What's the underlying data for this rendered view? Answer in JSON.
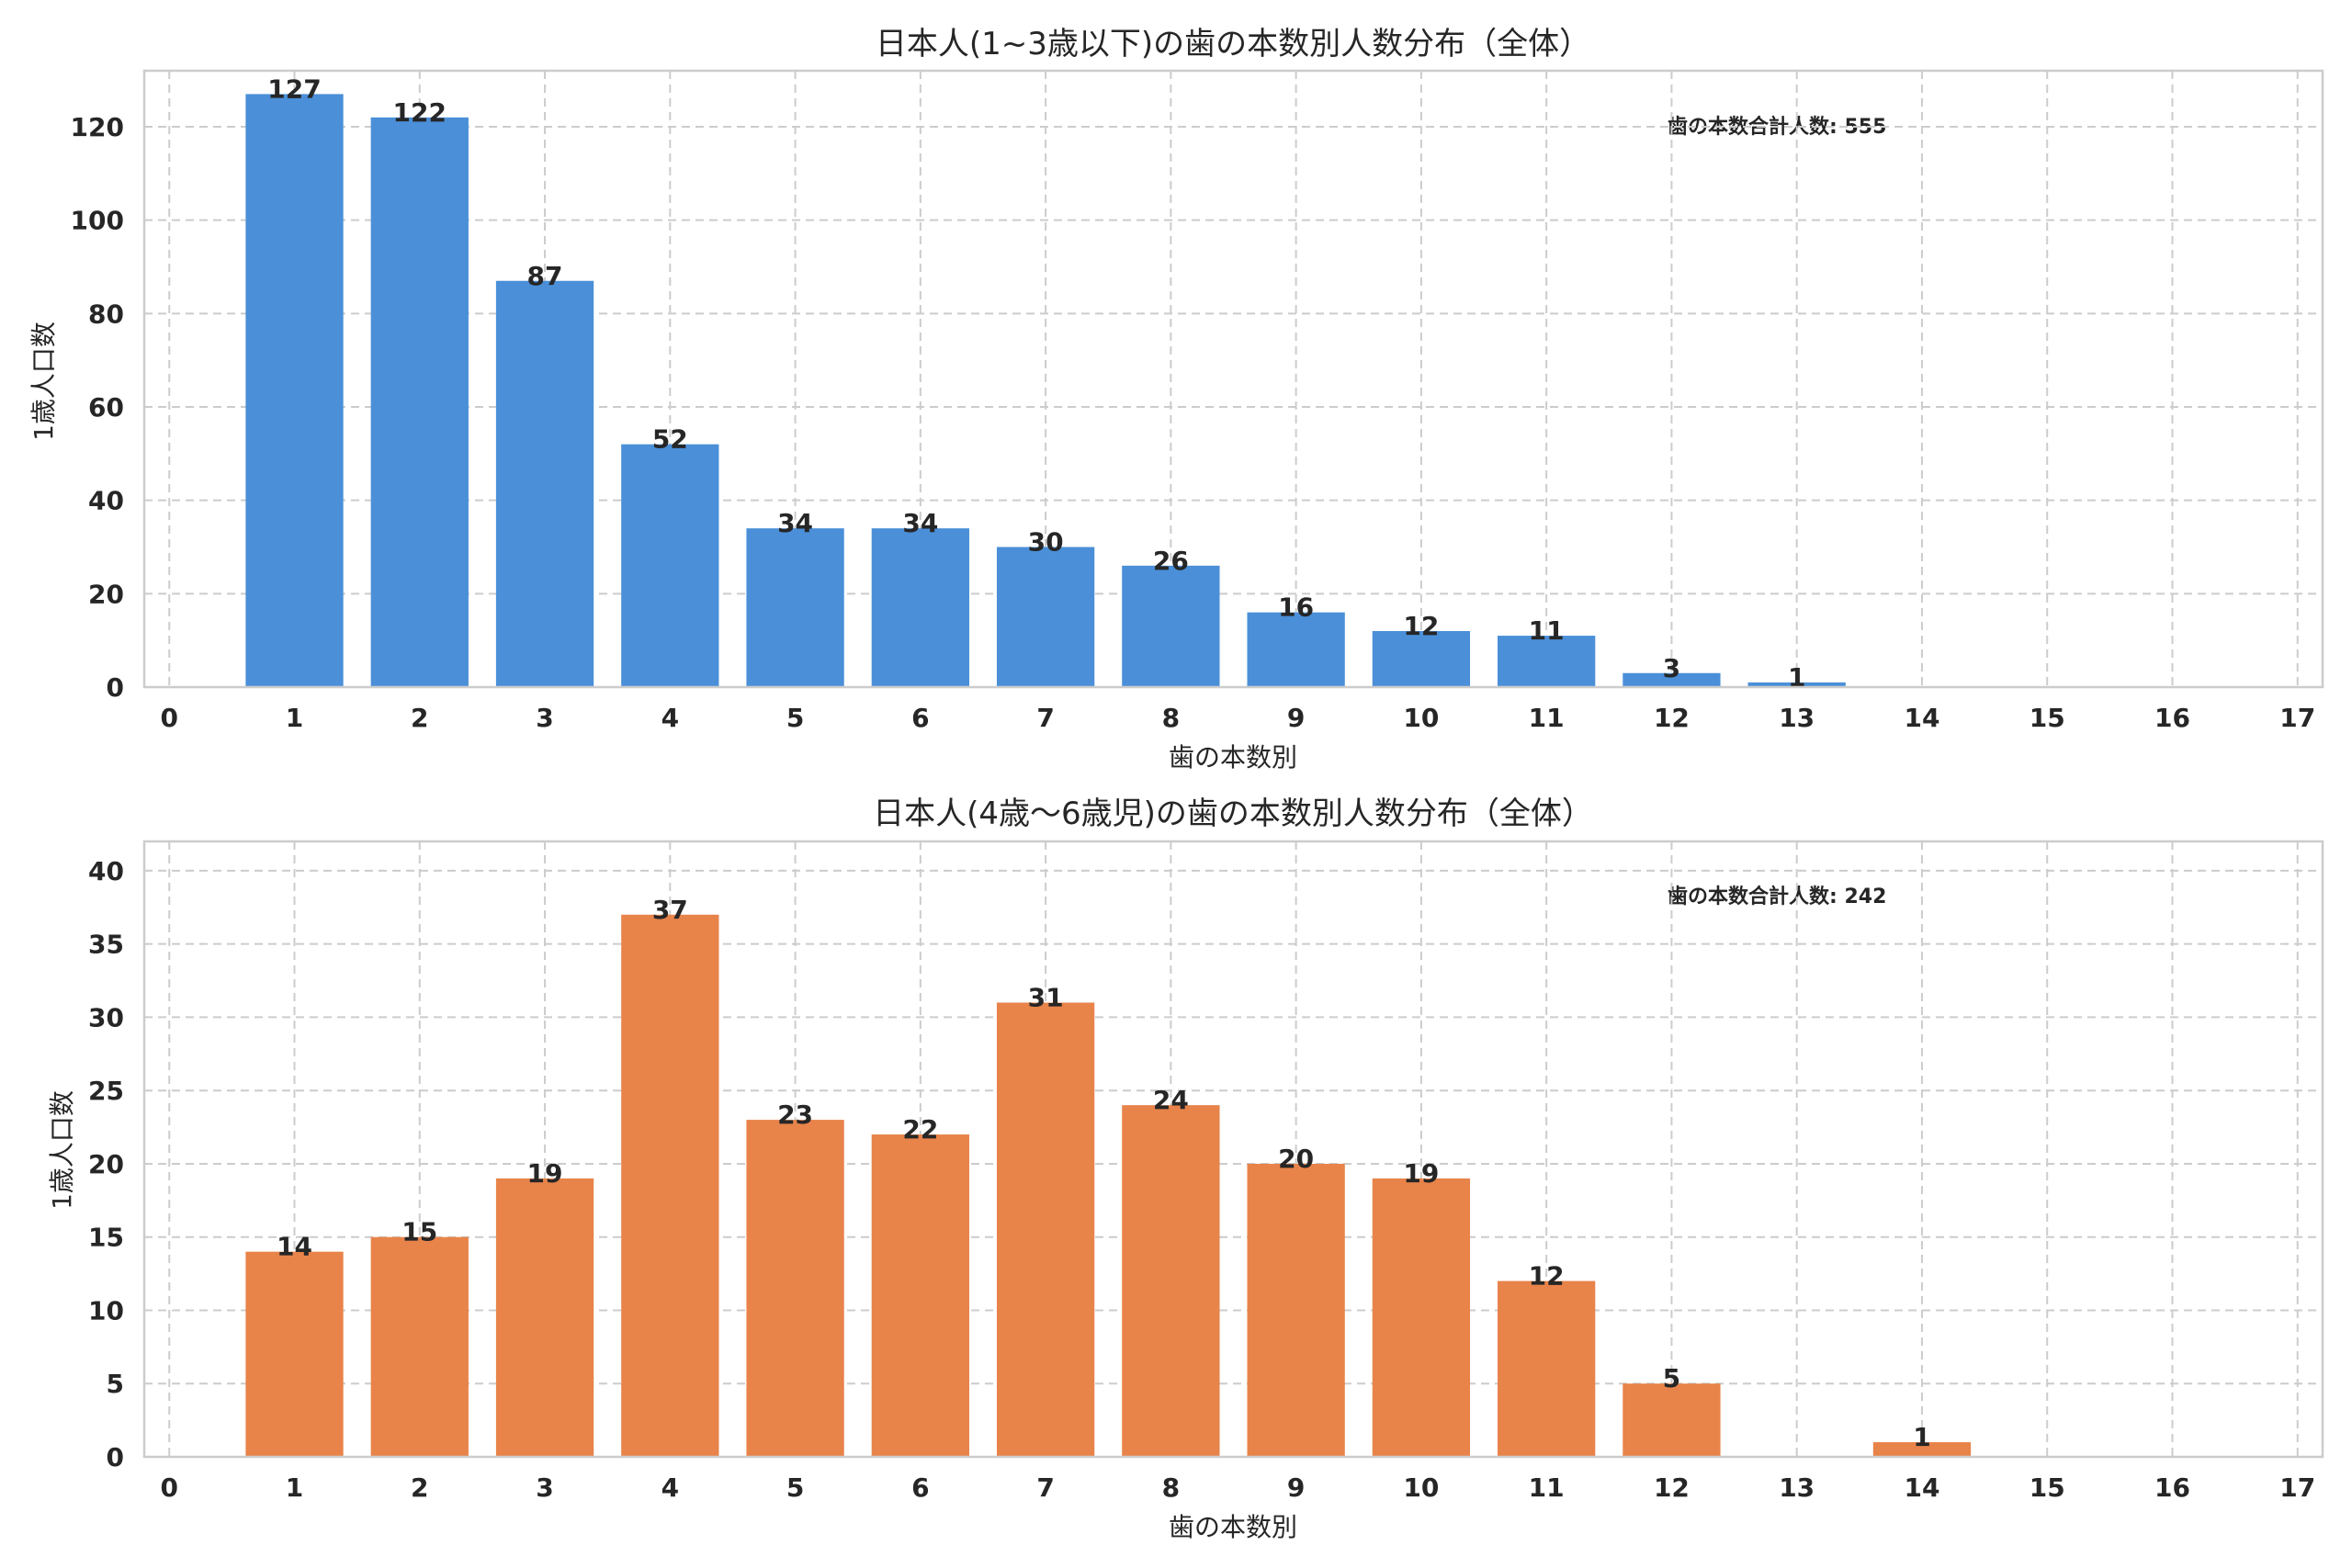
{
  "chart_data": [
    {
      "type": "bar",
      "title": "日本人(1~3歳以下)の歯の本数別人数分布（全体）",
      "xlabel": "歯の本数別",
      "ylabel": "1歳人口数",
      "annotation": "歯の本数合計人数: 555",
      "x": [
        1,
        2,
        3,
        4,
        5,
        6,
        7,
        8,
        9,
        10,
        11,
        12,
        13
      ],
      "values": [
        127,
        122,
        87,
        52,
        34,
        34,
        30,
        26,
        16,
        12,
        11,
        3,
        1
      ],
      "xlim": [
        -0.2,
        17.2
      ],
      "ylim": [
        0,
        132
      ],
      "xticks": [
        "0",
        "1",
        "2",
        "3",
        "4",
        "5",
        "6",
        "7",
        "8",
        "9",
        "10",
        "11",
        "12",
        "13",
        "14",
        "15",
        "16",
        "17"
      ],
      "yticks": [
        "0",
        "20",
        "40",
        "60",
        "80",
        "100",
        "120"
      ],
      "color": "#4a8fd8",
      "grid": true
    },
    {
      "type": "bar",
      "title": "日本人(4歳〜6歳児)の歯の本数別人数分布（全体）",
      "xlabel": "歯の本数別",
      "ylabel": "1歳人口数",
      "annotation": "歯の本数合計人数: 242",
      "x": [
        1,
        2,
        3,
        4,
        5,
        6,
        7,
        8,
        9,
        10,
        11,
        12,
        14
      ],
      "values": [
        14,
        15,
        19,
        37,
        23,
        22,
        31,
        24,
        20,
        19,
        12,
        5,
        1
      ],
      "xlim": [
        -0.2,
        17.2
      ],
      "ylim": [
        0,
        42
      ],
      "xticks": [
        "0",
        "1",
        "2",
        "3",
        "4",
        "5",
        "6",
        "7",
        "8",
        "9",
        "10",
        "11",
        "12",
        "13",
        "14",
        "15",
        "16",
        "17"
      ],
      "yticks": [
        "0",
        "5",
        "10",
        "15",
        "20",
        "25",
        "30",
        "35",
        "40"
      ],
      "color": "#e8834a",
      "grid": true
    }
  ]
}
